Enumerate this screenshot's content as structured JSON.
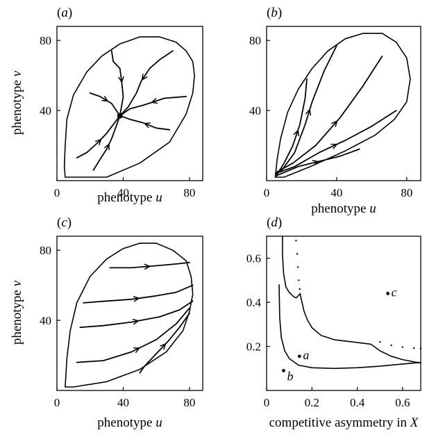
{
  "chart_data": [
    {
      "panel": "(a)",
      "type": "line",
      "xlabel": "phenotype u",
      "ylabel": "phenotype v",
      "xlim": [
        0,
        88
      ],
      "ylim": [
        0,
        88
      ],
      "xticks": [
        "0",
        "40",
        "80"
      ],
      "yticks": [
        "40",
        "80"
      ],
      "boundary": [
        [
          5,
          2
        ],
        [
          30,
          2
        ],
        [
          50,
          10
        ],
        [
          68,
          22
        ],
        [
          78,
          38
        ],
        [
          82,
          50
        ],
        [
          83,
          60
        ],
        [
          82,
          68
        ],
        [
          78,
          74
        ],
        [
          72,
          79
        ],
        [
          62,
          82
        ],
        [
          50,
          82
        ],
        [
          38,
          78
        ],
        [
          27,
          71
        ],
        [
          18,
          62
        ],
        [
          10,
          49
        ],
        [
          6,
          35
        ],
        [
          5,
          20
        ],
        [
          4.5,
          8
        ],
        [
          5,
          2
        ]
      ],
      "equilibrium": [
        38,
        37
      ],
      "trajectories": [
        [
          [
            22,
            6
          ],
          [
            26,
            12
          ],
          [
            30,
            18
          ],
          [
            33,
            24
          ],
          [
            35,
            29
          ],
          [
            36.5,
            33
          ],
          [
            38,
            37
          ]
        ],
        [
          [
            12,
            13
          ],
          [
            18,
            16
          ],
          [
            25,
            22
          ],
          [
            30,
            27
          ],
          [
            34,
            32
          ],
          [
            38,
            37
          ]
        ],
        [
          [
            20,
            50
          ],
          [
            26,
            48
          ],
          [
            33,
            44
          ],
          [
            38,
            37
          ]
        ],
        [
          [
            33,
            74
          ],
          [
            34,
            68
          ],
          [
            38,
            64
          ],
          [
            39,
            57
          ],
          [
            40,
            48
          ],
          [
            38,
            37
          ]
        ],
        [
          [
            70,
            74
          ],
          [
            62,
            69
          ],
          [
            56,
            64
          ],
          [
            51,
            57
          ],
          [
            48,
            50
          ],
          [
            43,
            42
          ],
          [
            38,
            37
          ]
        ],
        [
          [
            78,
            48
          ],
          [
            65,
            47
          ],
          [
            52,
            43
          ],
          [
            44,
            41
          ],
          [
            38,
            37
          ]
        ],
        [
          [
            68,
            29
          ],
          [
            60,
            30
          ],
          [
            52,
            33
          ],
          [
            44,
            35
          ],
          [
            38,
            37
          ]
        ]
      ]
    },
    {
      "panel": "(b)",
      "type": "line",
      "xlabel": "phenotype u",
      "ylabel": "",
      "xlim": [
        0,
        88
      ],
      "ylim": [
        0,
        88
      ],
      "xticks": [
        "0",
        "40",
        "80"
      ],
      "yticks": [
        "40",
        "80"
      ],
      "boundary": [
        [
          5,
          2
        ],
        [
          10,
          2
        ],
        [
          25,
          8
        ],
        [
          45,
          17
        ],
        [
          62,
          26
        ],
        [
          73,
          35
        ],
        [
          80,
          45
        ],
        [
          82,
          58
        ],
        [
          80,
          70
        ],
        [
          74,
          79
        ],
        [
          66,
          84
        ],
        [
          55,
          84
        ],
        [
          45,
          81
        ],
        [
          35,
          74
        ],
        [
          26,
          64
        ],
        [
          18,
          52
        ],
        [
          12,
          39
        ],
        [
          8,
          24
        ],
        [
          6,
          12
        ],
        [
          5,
          2
        ]
      ],
      "trajectories": [
        [
          [
            5,
            2
          ],
          [
            10,
            10
          ],
          [
            15,
            20
          ],
          [
            19,
            32
          ],
          [
            22,
            47
          ],
          [
            23,
            58
          ]
        ],
        [
          [
            8,
            5
          ],
          [
            16,
            16
          ],
          [
            22,
            32
          ],
          [
            26,
            45
          ],
          [
            33,
            63
          ],
          [
            40,
            77
          ]
        ],
        [
          [
            6,
            5
          ],
          [
            15,
            10
          ],
          [
            28,
            20
          ],
          [
            42,
            36
          ],
          [
            55,
            54
          ],
          [
            66,
            71
          ]
        ],
        [
          [
            5,
            4
          ],
          [
            16,
            8
          ],
          [
            30,
            16
          ],
          [
            45,
            23
          ],
          [
            60,
            31
          ],
          [
            74,
            40
          ]
        ],
        [
          [
            6,
            3
          ],
          [
            18,
            8
          ],
          [
            30,
            11
          ],
          [
            42,
            14
          ],
          [
            53,
            18
          ]
        ]
      ]
    },
    {
      "panel": "(c)",
      "type": "line",
      "xlabel": "phenotype u",
      "ylabel": "phenotype v",
      "xlim": [
        0,
        88
      ],
      "ylim": [
        0,
        88
      ],
      "xticks": [
        "0",
        "40",
        "80"
      ],
      "yticks": [
        "40",
        "80"
      ],
      "boundary": [
        [
          5,
          2
        ],
        [
          10,
          2
        ],
        [
          30,
          5
        ],
        [
          50,
          12
        ],
        [
          66,
          22
        ],
        [
          76,
          34
        ],
        [
          80,
          45
        ],
        [
          82,
          55
        ],
        [
          81,
          65
        ],
        [
          78,
          74
        ],
        [
          70,
          80
        ],
        [
          60,
          84
        ],
        [
          50,
          84
        ],
        [
          40,
          81
        ],
        [
          30,
          75
        ],
        [
          20,
          65
        ],
        [
          12,
          50
        ],
        [
          8,
          34
        ],
        [
          6,
          18
        ],
        [
          5,
          2
        ]
      ],
      "trajectories": [
        [
          [
            32,
            70
          ],
          [
            45,
            70
          ],
          [
            58,
            71
          ],
          [
            70,
            72
          ],
          [
            80,
            73
          ]
        ],
        [
          [
            16,
            50
          ],
          [
            30,
            51
          ],
          [
            45,
            52
          ],
          [
            60,
            54
          ],
          [
            72,
            56
          ],
          [
            82,
            60
          ]
        ],
        [
          [
            14,
            36
          ],
          [
            28,
            37
          ],
          [
            45,
            39
          ],
          [
            62,
            42
          ],
          [
            74,
            46
          ],
          [
            82,
            51
          ]
        ],
        [
          [
            12,
            16
          ],
          [
            28,
            17
          ],
          [
            45,
            22
          ],
          [
            60,
            29
          ],
          [
            72,
            38
          ],
          [
            80,
            47
          ]
        ],
        [
          [
            50,
            10
          ],
          [
            53,
            14
          ],
          [
            60,
            21
          ],
          [
            67,
            28
          ],
          [
            74,
            36
          ],
          [
            80,
            44
          ]
        ]
      ]
    },
    {
      "panel": "(d)",
      "type": "scatter",
      "xlabel": "competitive asymmetry in X",
      "ylabel": "",
      "xlim": [
        0,
        0.68
      ],
      "ylim": [
        0,
        0.7
      ],
      "xticks": [
        "0",
        "0.2",
        "0.4",
        "0.6"
      ],
      "yticks": [
        "0.2",
        "0.4",
        "0.6"
      ],
      "curves": [
        [
          [
            0.07,
            0.7
          ],
          [
            0.07,
            0.62
          ],
          [
            0.075,
            0.53
          ],
          [
            0.085,
            0.47
          ],
          [
            0.1,
            0.445
          ],
          [
            0.12,
            0.425
          ],
          [
            0.13,
            0.42
          ],
          [
            0.14,
            0.43
          ],
          [
            0.148,
            0.44
          ],
          [
            0.155,
            0.405
          ],
          [
            0.165,
            0.36
          ],
          [
            0.18,
            0.32
          ],
          [
            0.2,
            0.285
          ],
          [
            0.24,
            0.25
          ],
          [
            0.3,
            0.23
          ],
          [
            0.38,
            0.22
          ],
          [
            0.46,
            0.21
          ],
          [
            0.5,
            0.18
          ],
          [
            0.55,
            0.155
          ],
          [
            0.6,
            0.14
          ],
          [
            0.65,
            0.13
          ],
          [
            0.68,
            0.125
          ]
        ],
        [
          [
            0.055,
            0.48
          ],
          [
            0.058,
            0.33
          ],
          [
            0.065,
            0.24
          ],
          [
            0.08,
            0.18
          ],
          [
            0.1,
            0.145
          ],
          [
            0.14,
            0.115
          ],
          [
            0.2,
            0.103
          ],
          [
            0.3,
            0.1
          ],
          [
            0.4,
            0.103
          ],
          [
            0.5,
            0.11
          ],
          [
            0.6,
            0.12
          ],
          [
            0.68,
            0.127
          ]
        ]
      ],
      "dotted": [
        [
          [
            0.13,
            0.68
          ],
          [
            0.135,
            0.62
          ],
          [
            0.138,
            0.56
          ],
          [
            0.142,
            0.5
          ],
          [
            0.146,
            0.46
          ]
        ],
        [
          [
            0.5,
            0.22
          ],
          [
            0.55,
            0.205
          ],
          [
            0.6,
            0.197
          ],
          [
            0.65,
            0.192
          ],
          [
            0.68,
            0.19
          ]
        ]
      ],
      "points": [
        {
          "label": "a",
          "x": 0.145,
          "y": 0.155
        },
        {
          "label": "b",
          "x": 0.075,
          "y": 0.09
        },
        {
          "label": "c",
          "x": 0.535,
          "y": 0.44
        }
      ]
    }
  ]
}
